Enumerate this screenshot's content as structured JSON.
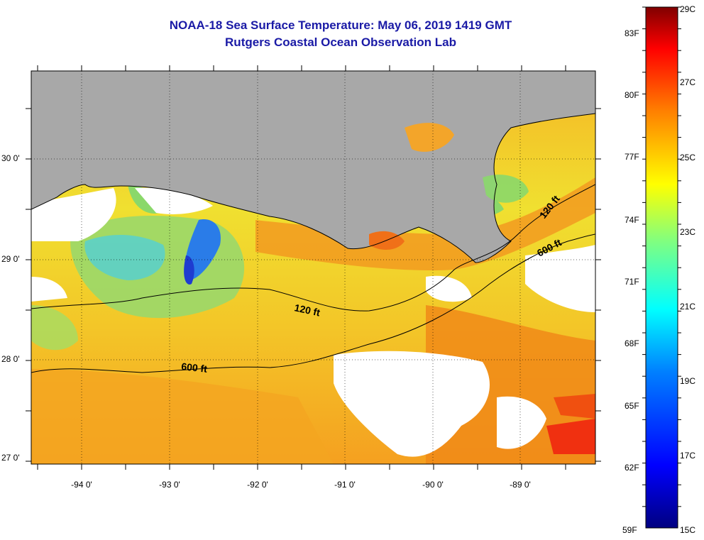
{
  "title": "NOAA-18 Sea Surface Temperature:  May 06, 2019 1419 GMT",
  "subtitle": "Rutgers Coastal Ocean Observation Lab",
  "lat_labels": [
    "30 0'",
    "29 0'",
    "28 0'",
    "27 0'"
  ],
  "lon_labels": [
    "-94 0'",
    "-93 0'",
    "-92 0'",
    "-91 0'",
    "-90 0'",
    "-89 0'"
  ],
  "contours": {
    "shelf_label_1": "120 ft",
    "shelf_label_2": "600 ft",
    "shelf_label_3": "600 ft",
    "shelf_label_4": "120 ft"
  },
  "colorbar": {
    "fahrenheit": [
      "83F",
      "80F",
      "77F",
      "74F",
      "71F",
      "68F",
      "65F",
      "62F",
      "59F"
    ],
    "celsius": [
      "29C",
      "27C",
      "25C",
      "23C",
      "21C",
      "19C",
      "17C",
      "15C"
    ],
    "colors": [
      "#000080",
      "#0000ff",
      "#0080ff",
      "#00ffff",
      "#80ff80",
      "#ffff00",
      "#ff8000",
      "#ff0000",
      "#800000"
    ]
  },
  "colors": {
    "land": "#a8a8a8",
    "warm": "#f39a1e",
    "mid": "#f2d22c",
    "cool": "#9fe063",
    "title": "#1a1aa6"
  }
}
